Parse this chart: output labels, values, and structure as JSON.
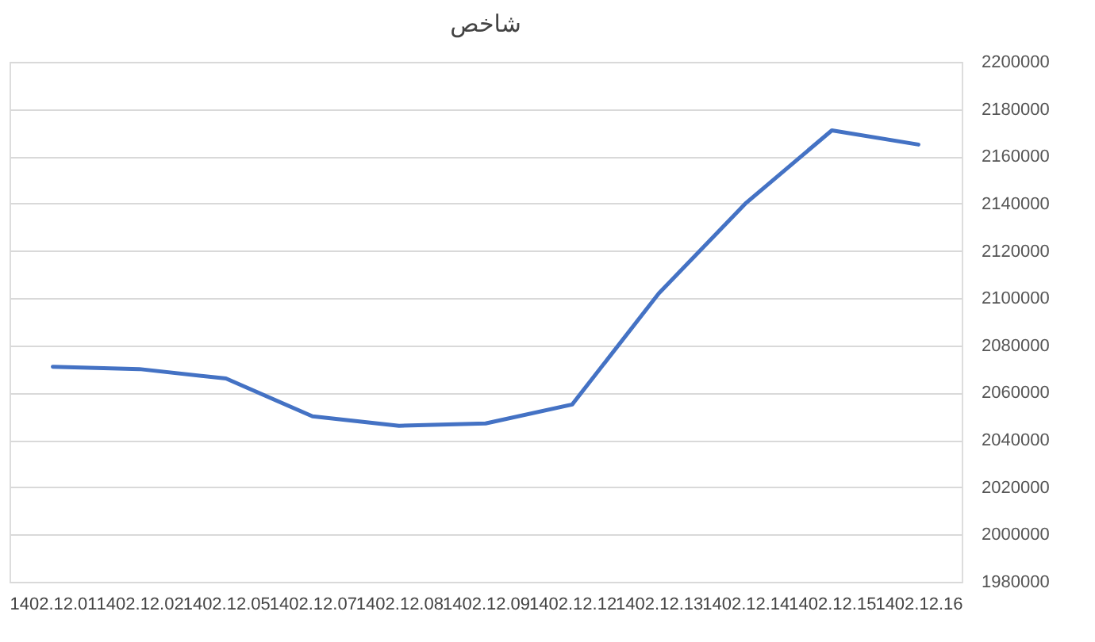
{
  "chart_data": {
    "type": "line",
    "title": "شاخص",
    "categories": [
      "1402.12.01",
      "1402.12.02",
      "1402.12.05",
      "1402.12.07",
      "1402.12.08",
      "1402.12.09",
      "1402.12.12",
      "1402.12.13",
      "1402.12.14",
      "1402.12.15",
      "1402.12.16"
    ],
    "series": [
      {
        "color": "#4472c4",
        "values": [
          2071000,
          2070000,
          2066000,
          2050000,
          2046000,
          2047000,
          2055000,
          2102000,
          2140000,
          2171000,
          2165000
        ]
      }
    ],
    "ylim": [
      1980000,
      2200000
    ],
    "yticks": [
      1980000,
      2000000,
      2020000,
      2040000,
      2060000,
      2080000,
      2100000,
      2120000,
      2140000,
      2160000,
      2180000,
      2200000
    ],
    "grid": "y",
    "legend": false,
    "marker": "none",
    "line_style": "solid"
  }
}
